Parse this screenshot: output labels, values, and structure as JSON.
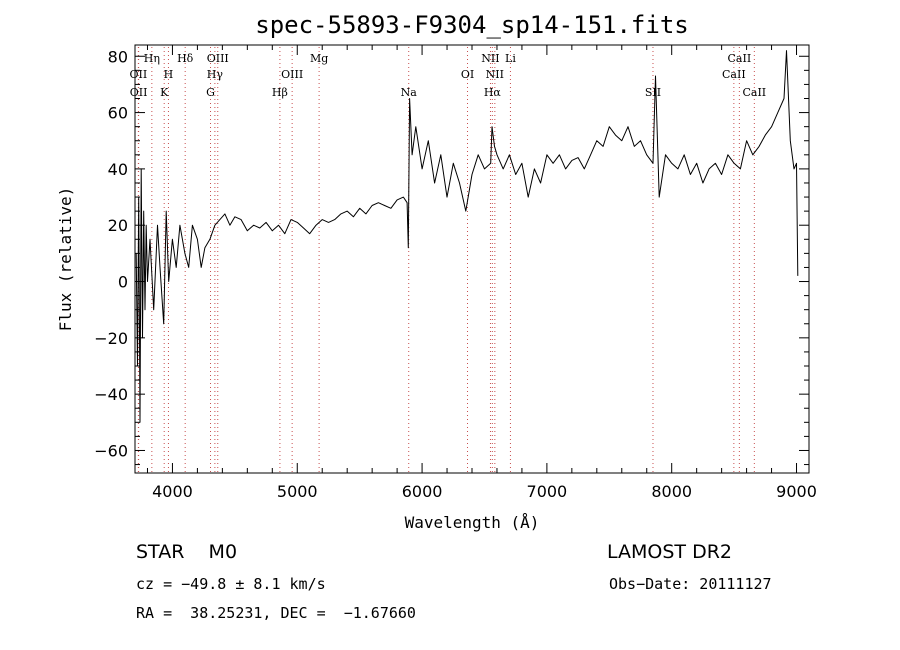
{
  "chart_data": {
    "type": "line",
    "title": "spec-55893-F9304_sp14-151.fits",
    "xlabel": "Wavelength (Å)",
    "ylabel": "Flux (relative)",
    "xlim": [
      3700,
      9100
    ],
    "ylim": [
      -68,
      84
    ],
    "x_ticks": [
      "4000",
      "5000",
      "6000",
      "7000",
      "8000",
      "9000"
    ],
    "y_ticks": [
      "80",
      "60",
      "40",
      "20",
      "0",
      "−20",
      "−40",
      "−60"
    ],
    "grid": false,
    "series": [
      {
        "color": "#000000",
        "x": [
          3710,
          3720,
          3730,
          3740,
          3750,
          3760,
          3770,
          3780,
          3790,
          3800,
          3820,
          3850,
          3880,
          3900,
          3930,
          3950,
          3970,
          4000,
          4030,
          4060,
          4100,
          4130,
          4160,
          4200,
          4230,
          4260,
          4300,
          4340,
          4380,
          4420,
          4460,
          4500,
          4550,
          4600,
          4650,
          4700,
          4750,
          4800,
          4850,
          4900,
          4950,
          5000,
          5050,
          5100,
          5150,
          5200,
          5250,
          5300,
          5350,
          5400,
          5450,
          5500,
          5550,
          5600,
          5650,
          5700,
          5750,
          5800,
          5850,
          5880,
          5890,
          5900,
          5920,
          5950,
          6000,
          6050,
          6100,
          6150,
          6200,
          6250,
          6300,
          6350,
          6400,
          6450,
          6500,
          6550,
          6560,
          6580,
          6600,
          6650,
          6700,
          6750,
          6800,
          6850,
          6900,
          6950,
          7000,
          7050,
          7100,
          7150,
          7200,
          7250,
          7300,
          7350,
          7400,
          7450,
          7500,
          7550,
          7600,
          7650,
          7700,
          7750,
          7800,
          7850,
          7870,
          7900,
          7950,
          8000,
          8050,
          8100,
          8150,
          8200,
          8250,
          8300,
          8350,
          8400,
          8450,
          8500,
          8550,
          8600,
          8650,
          8700,
          8750,
          8800,
          8850,
          8900,
          8920,
          8950,
          8980,
          9000,
          9010
        ],
        "y": [
          10,
          -30,
          30,
          -50,
          40,
          -20,
          25,
          -10,
          20,
          0,
          15,
          -10,
          20,
          5,
          -15,
          25,
          0,
          15,
          5,
          20,
          10,
          5,
          20,
          15,
          5,
          12,
          15,
          20,
          22,
          24,
          20,
          23,
          22,
          18,
          20,
          19,
          21,
          18,
          20,
          17,
          22,
          21,
          19,
          17,
          20,
          22,
          21,
          22,
          24,
          25,
          23,
          26,
          24,
          27,
          28,
          27,
          26,
          29,
          30,
          28,
          12,
          65,
          45,
          55,
          40,
          50,
          35,
          45,
          30,
          42,
          35,
          25,
          38,
          45,
          40,
          42,
          55,
          48,
          45,
          40,
          45,
          38,
          42,
          30,
          40,
          35,
          45,
          42,
          45,
          40,
          43,
          44,
          40,
          45,
          50,
          48,
          55,
          52,
          50,
          55,
          48,
          50,
          45,
          42,
          73,
          30,
          45,
          42,
          40,
          45,
          38,
          42,
          35,
          40,
          42,
          38,
          45,
          42,
          40,
          50,
          45,
          48,
          52,
          55,
          60,
          65,
          82,
          50,
          40,
          42,
          2
        ]
      }
    ],
    "annotations": [
      {
        "label": "Hη",
        "wavelength": 3835,
        "row": 0
      },
      {
        "label": "Hδ",
        "wavelength": 4102,
        "row": 0
      },
      {
        "label": "OIII",
        "wavelength": 4363,
        "row": 0
      },
      {
        "label": "Mg",
        "wavelength": 5175,
        "row": 0
      },
      {
        "label": "NII",
        "wavelength": 6548,
        "row": 0
      },
      {
        "label": "Li",
        "wavelength": 6708,
        "row": 0
      },
      {
        "label": "CaII",
        "wavelength": 8542,
        "row": 0
      },
      {
        "label": "OII",
        "wavelength": 3727,
        "row": 1
      },
      {
        "label": "H",
        "wavelength": 3968,
        "row": 1
      },
      {
        "label": "Hγ",
        "wavelength": 4340,
        "row": 1
      },
      {
        "label": "OIII",
        "wavelength": 4959,
        "row": 1
      },
      {
        "label": "OI",
        "wavelength": 6364,
        "row": 1
      },
      {
        "label": "NII",
        "wavelength": 6583,
        "row": 1
      },
      {
        "label": "CaII",
        "wavelength": 8498,
        "row": 1
      },
      {
        "label": "OII",
        "wavelength": 3729,
        "row": 2
      },
      {
        "label": "K",
        "wavelength": 3934,
        "row": 2
      },
      {
        "label": "G",
        "wavelength": 4305,
        "row": 2
      },
      {
        "label": "Hβ",
        "wavelength": 4861,
        "row": 2
      },
      {
        "label": "Na",
        "wavelength": 5893,
        "row": 2
      },
      {
        "label": "Hα",
        "wavelength": 6563,
        "row": 2
      },
      {
        "label": "SII",
        "wavelength": 7850,
        "row": 2
      },
      {
        "label": "CaII",
        "wavelength": 8662,
        "row": 2
      }
    ]
  },
  "info": {
    "class_label": "STAR    M0",
    "survey": "LAMOST DR2",
    "cz": "cz = −49.8 ± 8.1 km/s",
    "obs_date": "Obs−Date: 20111127",
    "coords": "RA =  38.25231, DEC =  −1.67660"
  }
}
